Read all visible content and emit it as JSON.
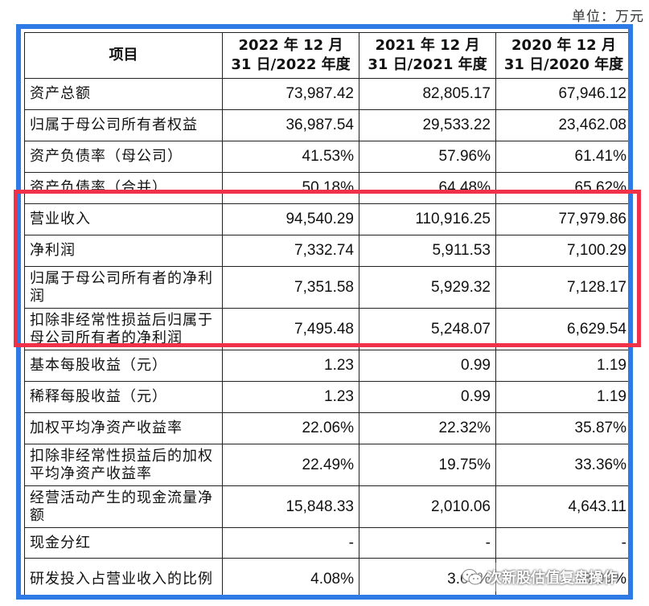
{
  "unit_label": "单位：万元",
  "header": {
    "item": "项目",
    "col2022": "2022 年 12 月 31 日/2022 年度",
    "col2021": "2021 年 12 月 31 日/2021 年度",
    "col2020": "2020 年 12 月 31 日/2020 年度"
  },
  "rows": [
    {
      "label": "资产总额",
      "v2022": "73,987.42",
      "v2021": "82,805.17",
      "v2020": "67,946.12"
    },
    {
      "label": "归属于母公司所有者权益",
      "v2022": "36,987.54",
      "v2021": "29,533.22",
      "v2020": "23,462.08"
    },
    {
      "label": "资产负债率（母公司）",
      "v2022": "41.53%",
      "v2021": "57.96%",
      "v2020": "61.41%"
    },
    {
      "label": "资产负债率（合并）",
      "v2022": "50.18%",
      "v2021": "64.48%",
      "v2020": "65.62%"
    },
    {
      "label": "营业收入",
      "v2022": "94,540.29",
      "v2021": "110,916.25",
      "v2020": "77,979.86"
    },
    {
      "label": "净利润",
      "v2022": "7,332.74",
      "v2021": "5,911.53",
      "v2020": "7,100.29"
    },
    {
      "label": "归属于母公司所有者的净利润",
      "v2022": "7,351.58",
      "v2021": "5,929.32",
      "v2020": "7,128.17"
    },
    {
      "label": "扣除非经常性损益后归属于母公司所有者的净利润",
      "v2022": "7,495.48",
      "v2021": "5,248.07",
      "v2020": "6,629.54"
    },
    {
      "label": "基本每股收益（元）",
      "v2022": "1.23",
      "v2021": "0.99",
      "v2020": "1.19"
    },
    {
      "label": "稀释每股收益（元）",
      "v2022": "1.23",
      "v2021": "0.99",
      "v2020": "1.19"
    },
    {
      "label": "加权平均净资产收益率",
      "v2022": "22.06%",
      "v2021": "22.32%",
      "v2020": "35.87%"
    },
    {
      "label": "扣除非经常性损益后的加权平均净资产收益率",
      "v2022": "22.49%",
      "v2021": "19.75%",
      "v2020": "33.36%"
    },
    {
      "label": "经营活动产生的现金流量净额",
      "v2022": "15,848.33",
      "v2021": "2,010.06",
      "v2020": "4,643.11"
    },
    {
      "label": "现金分红",
      "v2022": "-",
      "v2021": "-",
      "v2020": "-"
    },
    {
      "label": "研发投入占营业收入的比例",
      "v2022": "4.08%",
      "v2021": "3.68%",
      "v2020": "3.99%"
    }
  ],
  "watermark": {
    "text": "次新股估值复盘操作",
    "icon": "wechat-icon"
  },
  "colors": {
    "frame": "#2f7be6",
    "highlight": "#f0314a"
  }
}
